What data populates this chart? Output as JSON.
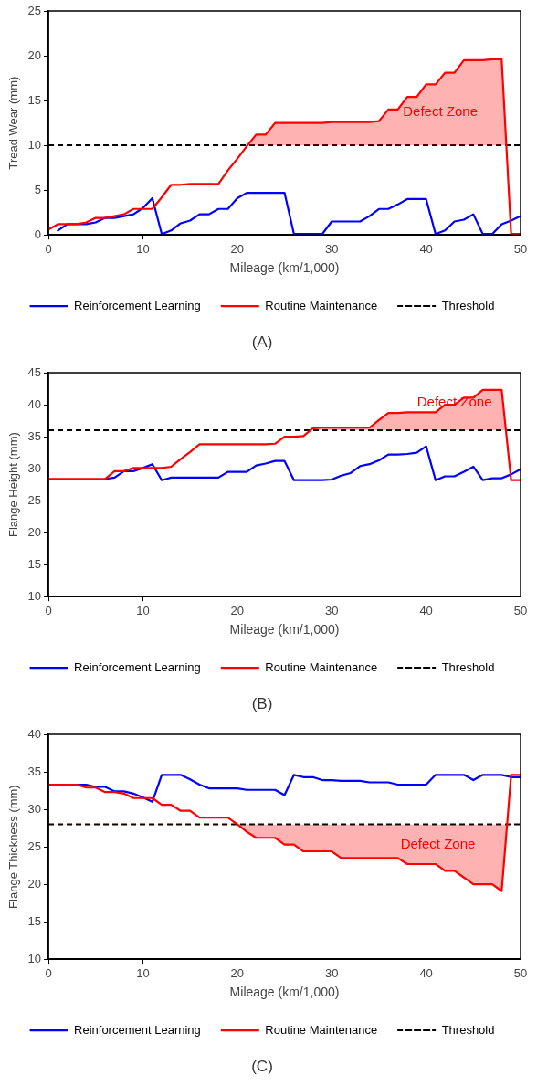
{
  "chart_data": [
    {
      "type": "line",
      "title": "(A)",
      "xlabel": "Mileage (km/1,000)",
      "ylabel": "Tread Wear (mm)",
      "x": [
        0,
        1,
        2,
        3,
        4,
        5,
        6,
        7,
        8,
        9,
        10,
        11,
        12,
        13,
        14,
        15,
        16,
        17,
        18,
        19,
        20,
        21,
        22,
        23,
        24,
        25,
        26,
        27,
        28,
        29,
        30,
        31,
        32,
        33,
        34,
        35,
        36,
        37,
        38,
        39,
        40,
        41,
        42,
        43,
        44,
        45,
        46,
        47,
        48,
        49,
        50
      ],
      "series": [
        {
          "name": "Reinforcement Learning",
          "color": "#0000ff",
          "values": [
            null,
            0.5,
            1.2,
            1.2,
            1.2,
            1.4,
            1.9,
            1.9,
            2.1,
            2.3,
            3.0,
            4.1,
            0.1,
            0.5,
            1.3,
            1.6,
            2.3,
            2.3,
            2.9,
            2.9,
            4.1,
            4.7,
            4.7,
            4.7,
            4.7,
            4.7,
            0.1,
            0.1,
            0.1,
            0.1,
            1.5,
            1.5,
            1.5,
            1.5,
            2.1,
            2.9,
            2.9,
            3.4,
            4.0,
            4.0,
            4.0,
            0.1,
            0.5,
            1.5,
            1.7,
            2.3,
            0.1,
            0.1,
            1.2,
            1.6,
            2.1
          ]
        },
        {
          "name": "Routine Maintenance",
          "color": "#ff0000",
          "values": [
            0.6,
            1.2,
            1.2,
            1.2,
            1.4,
            1.9,
            1.9,
            2.1,
            2.3,
            2.9,
            2.9,
            2.9,
            4.2,
            5.6,
            5.6,
            5.7,
            5.7,
            5.7,
            5.7,
            7.2,
            8.5,
            9.9,
            11.2,
            11.2,
            12.5,
            12.5,
            12.5,
            12.5,
            12.5,
            12.5,
            12.6,
            12.6,
            12.6,
            12.6,
            12.6,
            12.7,
            14.0,
            14.0,
            15.4,
            15.4,
            16.8,
            16.8,
            18.1,
            18.1,
            19.5,
            19.5,
            19.5,
            19.6,
            19.6,
            0.1,
            0.1
          ]
        }
      ],
      "ref_lines": [
        {
          "axis": "y",
          "value": 10,
          "label": "Threshold",
          "color": "#000000",
          "line_style": "dashed"
        }
      ],
      "annotations": [
        "Defect Zone"
      ],
      "xlim": [
        0,
        50
      ],
      "xticks": [
        0,
        10,
        20,
        30,
        40,
        50
      ],
      "ylim": [
        0,
        25
      ],
      "yticks": [
        0,
        5,
        10,
        15,
        20,
        25
      ],
      "grid": false,
      "legend": "bottom",
      "marker": "none",
      "line_style": "solid"
    },
    {
      "type": "line",
      "title": "(B)",
      "xlabel": "Mileage (km/1,000)",
      "ylabel": "Flange Height (mm)",
      "x": [
        0,
        1,
        2,
        3,
        4,
        5,
        6,
        7,
        8,
        9,
        10,
        11,
        12,
        13,
        14,
        15,
        16,
        17,
        18,
        19,
        20,
        21,
        22,
        23,
        24,
        25,
        26,
        27,
        28,
        29,
        30,
        31,
        32,
        33,
        34,
        35,
        36,
        37,
        38,
        39,
        40,
        41,
        42,
        43,
        44,
        45,
        46,
        47,
        48,
        49,
        50
      ],
      "series": [
        {
          "name": "Reinforcement Learning",
          "color": "#0000ff",
          "values": [
            null,
            null,
            null,
            null,
            null,
            null,
            28.4,
            28.6,
            29.6,
            29.6,
            30.1,
            30.7,
            28.2,
            28.6,
            28.6,
            28.6,
            28.6,
            28.6,
            28.6,
            29.5,
            29.5,
            29.5,
            30.5,
            30.8,
            31.2,
            31.2,
            28.2,
            28.2,
            28.2,
            28.2,
            28.3,
            28.9,
            29.3,
            30.4,
            30.7,
            31.3,
            32.2,
            32.2,
            32.3,
            32.5,
            33.5,
            28.2,
            28.8,
            28.8,
            29.5,
            30.3,
            28.2,
            28.5,
            28.5,
            29.1,
            29.9
          ]
        },
        {
          "name": "Routine Maintenance",
          "color": "#ff0000",
          "values": [
            28.4,
            28.4,
            28.4,
            28.4,
            28.4,
            28.4,
            28.4,
            29.6,
            29.6,
            30.1,
            30.1,
            30.1,
            30.1,
            30.3,
            31.5,
            32.6,
            33.8,
            33.8,
            33.8,
            33.8,
            33.8,
            33.8,
            33.8,
            33.8,
            33.9,
            35.0,
            35.0,
            35.1,
            36.3,
            36.4,
            36.4,
            36.4,
            36.4,
            36.4,
            36.4,
            37.6,
            38.7,
            38.7,
            38.8,
            38.8,
            38.8,
            38.8,
            40.0,
            40.0,
            41.1,
            41.1,
            42.3,
            42.3,
            42.3,
            28.2,
            28.2
          ]
        }
      ],
      "ref_lines": [
        {
          "axis": "y",
          "value": 36,
          "label": "Threshold",
          "color": "#000000",
          "line_style": "dashed"
        }
      ],
      "annotations": [
        "Defect Zone"
      ],
      "xlim": [
        0,
        50
      ],
      "xticks": [
        0,
        10,
        20,
        30,
        40,
        50
      ],
      "ylim": [
        10,
        45
      ],
      "yticks": [
        10,
        15,
        20,
        25,
        30,
        35,
        40,
        45
      ],
      "grid": false,
      "legend": "bottom",
      "marker": "none",
      "line_style": "solid"
    },
    {
      "type": "line",
      "title": "(C)",
      "xlabel": "Mileage (km/1,000)",
      "ylabel": "Flange Thickness (mm)",
      "x": [
        0,
        1,
        2,
        3,
        4,
        5,
        6,
        7,
        8,
        9,
        10,
        11,
        12,
        13,
        14,
        15,
        16,
        17,
        18,
        19,
        20,
        21,
        22,
        23,
        24,
        25,
        26,
        27,
        28,
        29,
        30,
        31,
        32,
        33,
        34,
        35,
        36,
        37,
        38,
        39,
        40,
        41,
        42,
        43,
        44,
        45,
        46,
        47,
        48,
        49,
        50
      ],
      "series": [
        {
          "name": "Reinforcement Learning",
          "color": "#0000ff",
          "values": [
            null,
            null,
            null,
            33.3,
            33.3,
            33.0,
            33.0,
            32.4,
            32.4,
            32.1,
            31.6,
            31.0,
            34.6,
            34.6,
            34.6,
            34.0,
            33.3,
            32.8,
            32.8,
            32.8,
            32.8,
            32.6,
            32.6,
            32.6,
            32.6,
            31.9,
            34.6,
            34.3,
            34.3,
            33.9,
            33.9,
            33.8,
            33.8,
            33.8,
            33.6,
            33.6,
            33.6,
            33.3,
            33.3,
            33.3,
            33.3,
            34.6,
            34.6,
            34.6,
            34.6,
            33.9,
            34.6,
            34.6,
            34.6,
            34.3,
            34.3
          ]
        },
        {
          "name": "Routine Maintenance",
          "color": "#ff0000",
          "values": [
            33.3,
            33.3,
            33.3,
            33.3,
            32.9,
            32.9,
            32.3,
            32.3,
            32.1,
            31.5,
            31.5,
            31.5,
            30.6,
            30.6,
            29.8,
            29.8,
            28.9,
            28.9,
            28.9,
            28.9,
            28.0,
            27.0,
            26.2,
            26.2,
            26.2,
            25.3,
            25.3,
            24.4,
            24.4,
            24.4,
            24.4,
            23.5,
            23.5,
            23.5,
            23.5,
            23.5,
            23.5,
            23.5,
            22.7,
            22.7,
            22.7,
            22.7,
            21.8,
            21.8,
            20.9,
            20.0,
            20.0,
            20.0,
            19.1,
            34.6,
            34.6
          ]
        }
      ],
      "ref_lines": [
        {
          "axis": "y",
          "value": 28,
          "label": "Threshold",
          "color": "#000000",
          "line_style": "dashed"
        }
      ],
      "annotations": [
        "Defect Zone"
      ],
      "xlim": [
        0,
        50
      ],
      "xticks": [
        0,
        10,
        20,
        30,
        40,
        50
      ],
      "ylim": [
        10,
        40
      ],
      "yticks": [
        10,
        15,
        20,
        25,
        30,
        35,
        40
      ],
      "grid": false,
      "legend": "bottom",
      "marker": "none",
      "line_style": "solid"
    }
  ]
}
